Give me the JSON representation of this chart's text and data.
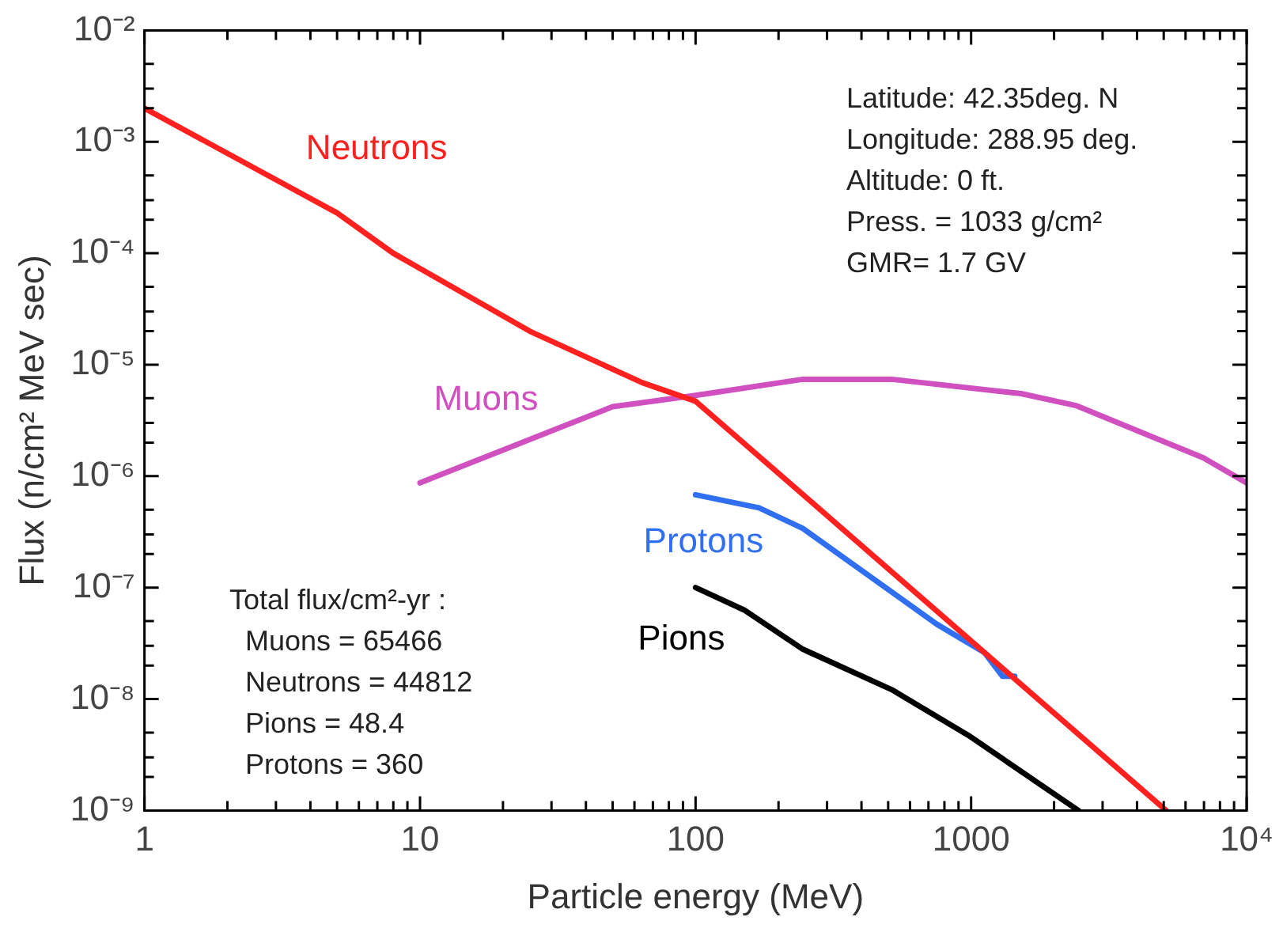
{
  "chart_data": {
    "type": "line",
    "xlabel": "Particle energy (MeV)",
    "ylabel": "Flux (n/cm² MeV sec)",
    "log": "xy",
    "grid": false,
    "xlim": [
      1,
      10000
    ],
    "ylim": [
      1e-09,
      0.01
    ],
    "xticks": [
      1,
      {
        "value": 2,
        "label": null
      },
      {
        "value": 3,
        "label": null
      },
      {
        "value": 4,
        "label": null
      },
      {
        "value": 5,
        "label": null
      },
      {
        "value": 6,
        "label": null
      },
      {
        "value": 7,
        "label": null
      },
      {
        "value": 8,
        "label": null
      },
      {
        "value": 9,
        "label": null
      },
      10,
      {
        "value": 20,
        "label": null
      },
      {
        "value": 30,
        "label": null
      },
      {
        "value": 40,
        "label": null
      },
      {
        "value": 50,
        "label": null
      },
      {
        "value": 60,
        "label": null
      },
      {
        "value": 70,
        "label": null
      },
      {
        "value": 80,
        "label": null
      },
      {
        "value": 90,
        "label": null
      },
      100,
      {
        "value": 200,
        "label": null
      },
      {
        "value": 300,
        "label": null
      },
      {
        "value": 400,
        "label": null
      },
      {
        "value": 500,
        "label": null
      },
      {
        "value": 600,
        "label": null
      },
      {
        "value": 700,
        "label": null
      },
      {
        "value": 800,
        "label": null
      },
      {
        "value": 900,
        "label": null
      },
      1000,
      {
        "value": 2000,
        "label": null
      },
      {
        "value": 3000,
        "label": null
      },
      {
        "value": 4000,
        "label": null
      },
      {
        "value": 5000,
        "label": null
      },
      {
        "value": 6000,
        "label": null
      },
      {
        "value": 7000,
        "label": null
      },
      {
        "value": 8000,
        "label": null
      },
      {
        "value": 9000,
        "label": null
      },
      {
        "value": 10000,
        "label": "10⁴"
      }
    ],
    "yticks": [
      {
        "value": 1e-09,
        "label": "10⁻⁹"
      },
      {
        "value": 2e-09,
        "label": null
      },
      {
        "value": 3e-09,
        "label": null
      },
      {
        "value": 5e-09,
        "label": null
      },
      {
        "value": 1e-08,
        "label": "10⁻⁸"
      },
      {
        "value": 2e-08,
        "label": null
      },
      {
        "value": 3e-08,
        "label": null
      },
      {
        "value": 5e-08,
        "label": null
      },
      {
        "value": 1e-07,
        "label": "10⁻⁷"
      },
      {
        "value": 2e-07,
        "label": null
      },
      {
        "value": 3e-07,
        "label": null
      },
      {
        "value": 5e-07,
        "label": null
      },
      {
        "value": 1e-06,
        "label": "10⁻⁶"
      },
      {
        "value": 2e-06,
        "label": null
      },
      {
        "value": 3e-06,
        "label": null
      },
      {
        "value": 5e-06,
        "label": null
      },
      {
        "value": 1e-05,
        "label": "10⁻⁵"
      },
      {
        "value": 2e-05,
        "label": null
      },
      {
        "value": 3e-05,
        "label": null
      },
      {
        "value": 5e-05,
        "label": null
      },
      {
        "value": 0.0001,
        "label": "10⁻⁴"
      },
      {
        "value": 0.0002,
        "label": null
      },
      {
        "value": 0.0003,
        "label": null
      },
      {
        "value": 0.0005,
        "label": null
      },
      {
        "value": 0.001,
        "label": "10⁻³"
      },
      {
        "value": 0.002,
        "label": null
      },
      {
        "value": 0.003,
        "label": null
      },
      {
        "value": 0.005,
        "label": null
      },
      {
        "value": 0.01,
        "label": "10⁻²"
      }
    ],
    "series": [
      {
        "name": "Neutrons",
        "color": "#ff2020",
        "x": [
          1,
          5,
          8,
          25,
          64,
          100,
          5100
        ],
        "values": [
          0.002,
          0.00023,
          0.0001,
          2e-05,
          6.9e-06,
          4.7e-06,
          1e-09
        ]
      },
      {
        "name": "Muons",
        "color": "#d050c0",
        "x": [
          10,
          50,
          100,
          245,
          515,
          1520,
          2400,
          7000,
          10000
        ],
        "values": [
          8.7e-07,
          4.2e-06,
          5.3e-06,
          7.4e-06,
          7.4e-06,
          5.5e-06,
          4.3e-06,
          1.45e-06,
          8.7e-07
        ]
      },
      {
        "name": "Protons",
        "color": "#3070f0",
        "x": [
          100,
          170,
          245,
          750,
          1120,
          1300,
          1440
        ],
        "values": [
          6.8e-07,
          5.2e-07,
          3.4e-07,
          4.7e-08,
          2.6e-08,
          1.6e-08,
          1.6e-08
        ]
      },
      {
        "name": "Pions",
        "color": "#000000",
        "x": [
          100,
          150,
          245,
          520,
          980,
          2450
        ],
        "values": [
          1e-07,
          6.3e-08,
          2.8e-08,
          1.2e-08,
          4.7e-09,
          1e-09
        ]
      }
    ],
    "annotations": [
      "Latitude: 42.35deg. N\nLongitude: 288.95 deg.\nAltitude: 0 ft.\nPress. = 1033 g/cm²\nGMR= 1.7 GV",
      "Total flux/cm²-yr :\nMuons = 65466\nNeutrons = 44812\nPions = 48.4\nProtons = 360"
    ]
  }
}
